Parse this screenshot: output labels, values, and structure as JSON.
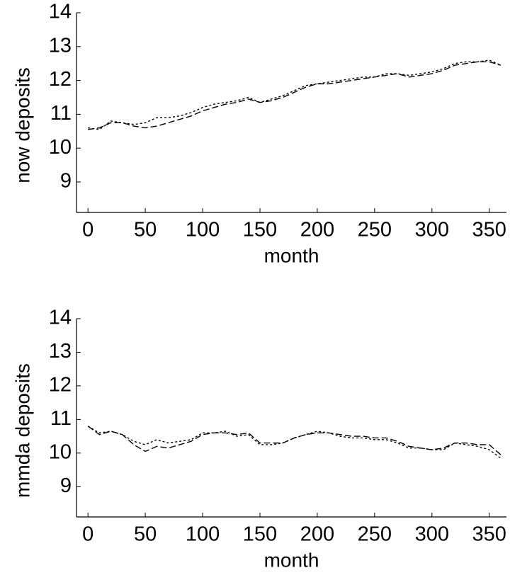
{
  "chart_data": [
    {
      "type": "line",
      "ylabel": "now deposits",
      "xlabel": "month",
      "xlim": [
        -10,
        365
      ],
      "ylim": [
        8.1,
        14
      ],
      "xticks": [
        0,
        50,
        100,
        150,
        200,
        250,
        300,
        350
      ],
      "yticks": [
        9,
        10,
        11,
        12,
        13,
        14
      ],
      "x": [
        0,
        10,
        20,
        30,
        40,
        50,
        60,
        70,
        80,
        90,
        100,
        110,
        120,
        130,
        140,
        150,
        160,
        170,
        180,
        190,
        200,
        210,
        220,
        230,
        240,
        250,
        260,
        270,
        280,
        290,
        300,
        310,
        320,
        330,
        340,
        350,
        360
      ],
      "series": [
        {
          "color": "#000000",
          "style": "dashed",
          "values": [
            10.55,
            10.6,
            10.75,
            10.75,
            10.65,
            10.6,
            10.65,
            10.75,
            10.85,
            10.95,
            11.1,
            11.2,
            11.3,
            11.35,
            11.45,
            11.35,
            11.4,
            11.5,
            11.65,
            11.8,
            11.9,
            11.9,
            11.95,
            12.0,
            12.05,
            12.1,
            12.15,
            12.2,
            12.1,
            12.15,
            12.2,
            12.3,
            12.45,
            12.5,
            12.55,
            12.55,
            12.45
          ]
        },
        {
          "color": "#000000",
          "style": "dotted",
          "values": [
            10.6,
            10.55,
            10.8,
            10.75,
            10.7,
            10.75,
            10.9,
            10.9,
            10.95,
            11.05,
            11.2,
            11.3,
            11.35,
            11.4,
            11.5,
            11.35,
            11.45,
            11.55,
            11.7,
            11.85,
            11.9,
            11.95,
            12.0,
            12.05,
            12.1,
            12.1,
            12.2,
            12.2,
            12.15,
            12.2,
            12.25,
            12.35,
            12.5,
            12.55,
            12.55,
            12.6,
            12.45
          ]
        }
      ]
    },
    {
      "type": "line",
      "ylabel": "mmda deposits",
      "xlabel": "month",
      "xlim": [
        -10,
        365
      ],
      "ylim": [
        8.1,
        14
      ],
      "xticks": [
        0,
        50,
        100,
        150,
        200,
        250,
        300,
        350
      ],
      "yticks": [
        9,
        10,
        11,
        12,
        13,
        14
      ],
      "x": [
        0,
        10,
        20,
        30,
        40,
        50,
        60,
        70,
        80,
        90,
        100,
        110,
        120,
        130,
        140,
        150,
        160,
        170,
        180,
        190,
        200,
        210,
        220,
        230,
        240,
        250,
        260,
        270,
        280,
        290,
        300,
        310,
        320,
        330,
        340,
        350,
        360
      ],
      "series": [
        {
          "color": "#000000",
          "style": "dashed",
          "values": [
            10.8,
            10.55,
            10.65,
            10.55,
            10.25,
            10.05,
            10.2,
            10.15,
            10.25,
            10.35,
            10.55,
            10.6,
            10.6,
            10.55,
            10.6,
            10.3,
            10.3,
            10.3,
            10.45,
            10.55,
            10.6,
            10.6,
            10.55,
            10.5,
            10.5,
            10.45,
            10.45,
            10.35,
            10.2,
            10.15,
            10.1,
            10.15,
            10.3,
            10.3,
            10.25,
            10.25,
            9.95
          ]
        },
        {
          "color": "#000000",
          "style": "dotted",
          "values": [
            10.8,
            10.6,
            10.65,
            10.55,
            10.35,
            10.25,
            10.4,
            10.3,
            10.35,
            10.4,
            10.6,
            10.6,
            10.65,
            10.5,
            10.55,
            10.25,
            10.25,
            10.3,
            10.45,
            10.55,
            10.65,
            10.6,
            10.5,
            10.45,
            10.45,
            10.4,
            10.4,
            10.3,
            10.15,
            10.15,
            10.1,
            10.1,
            10.3,
            10.25,
            10.2,
            10.1,
            9.85
          ]
        }
      ]
    }
  ]
}
